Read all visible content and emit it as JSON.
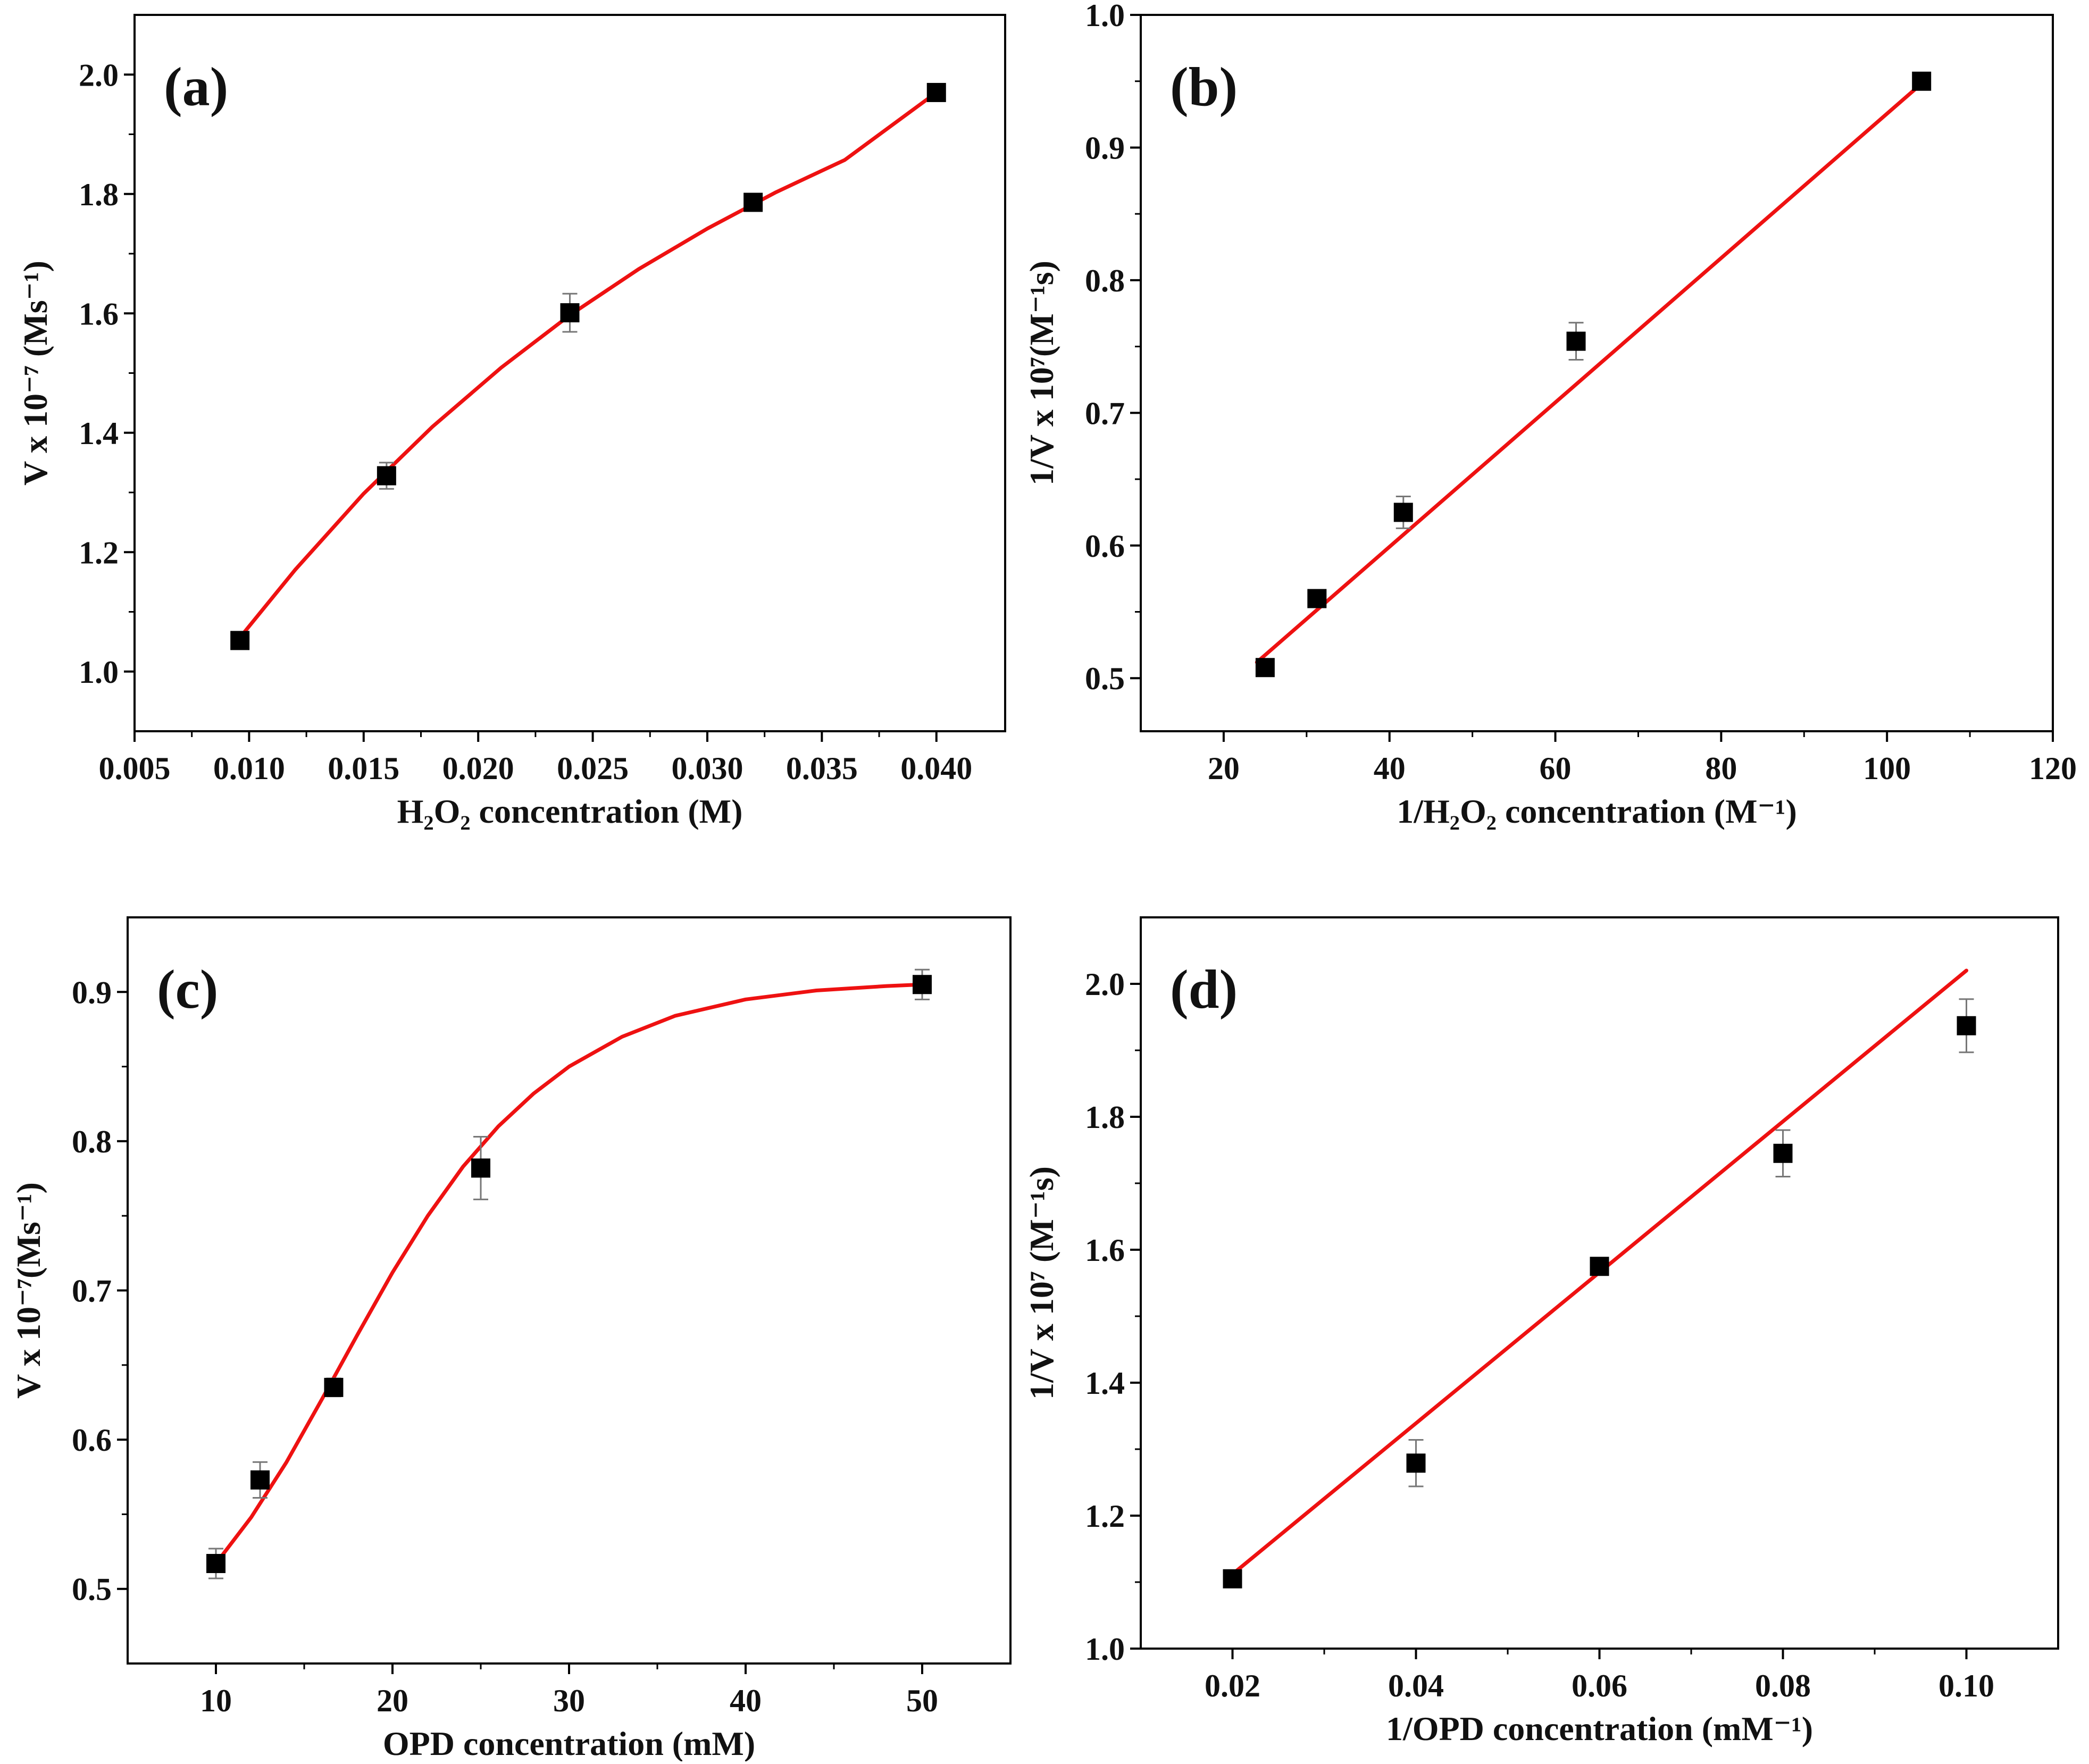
{
  "figure": {
    "colors": {
      "fit_line": "#ee1111",
      "marker": "#000000",
      "error_bar": "#777777",
      "axis": "#000000",
      "background": "#ffffff"
    }
  },
  "chart_data": [
    {
      "id": "a",
      "type": "scatter",
      "panel_label": "(a)",
      "xlabel": "H₂O₂ concentration (M)",
      "ylabel": "V x 10⁻⁷ (Ms⁻¹)",
      "xlim": [
        0.005,
        0.043
      ],
      "ylim": [
        0.9,
        2.1
      ],
      "xticks": [
        0.005,
        0.01,
        0.015,
        0.02,
        0.025,
        0.03,
        0.035,
        0.04
      ],
      "xtick_labels": [
        "0.005",
        "0.010",
        "0.015",
        "0.020",
        "0.025",
        "0.030",
        "0.035",
        "0.040"
      ],
      "yticks": [
        1.0,
        1.2,
        1.4,
        1.6,
        1.8,
        2.0
      ],
      "ytick_labels": [
        "1.0",
        "1.2",
        "1.4",
        "1.6",
        "1.8",
        "2.0"
      ],
      "points": [
        {
          "x": 0.0096,
          "y": 1.052,
          "err": 0.008
        },
        {
          "x": 0.016,
          "y": 1.328,
          "err": 0.022
        },
        {
          "x": 0.024,
          "y": 1.601,
          "err": 0.032
        },
        {
          "x": 0.032,
          "y": 1.786,
          "err": 0.012
        },
        {
          "x": 0.04,
          "y": 1.97,
          "err": 0.008
        }
      ],
      "fit": {
        "x": [
          0.0096,
          0.012,
          0.015,
          0.018,
          0.021,
          0.024,
          0.027,
          0.03,
          0.033,
          0.036,
          0.04
        ],
        "y": [
          1.057,
          1.17,
          1.298,
          1.41,
          1.509,
          1.597,
          1.674,
          1.742,
          1.803,
          1.857,
          1.97
        ]
      }
    },
    {
      "id": "b",
      "type": "scatter",
      "panel_label": "(b)",
      "xlabel": "1/H₂O₂ concentration (M⁻¹)",
      "ylabel": "1/V x 10⁷(M⁻¹s)",
      "xlim": [
        10,
        120
      ],
      "ylim": [
        0.46,
        1.0
      ],
      "xticks": [
        20,
        40,
        60,
        80,
        100,
        120
      ],
      "xtick_labels": [
        "20",
        "40",
        "60",
        "80",
        "100",
        "120"
      ],
      "yticks": [
        0.5,
        0.6,
        0.7,
        0.8,
        0.9,
        1.0
      ],
      "ytick_labels": [
        "0.5",
        "0.6",
        "0.7",
        "0.8",
        "0.9",
        "1.0"
      ],
      "points": [
        {
          "x": 25,
          "y": 0.508,
          "err": 0.006
        },
        {
          "x": 31.25,
          "y": 0.56,
          "err": 0.006
        },
        {
          "x": 41.67,
          "y": 0.625,
          "err": 0.012
        },
        {
          "x": 62.5,
          "y": 0.754,
          "err": 0.014
        },
        {
          "x": 104.17,
          "y": 0.95,
          "err": 0.004
        }
      ],
      "fit": {
        "x": [
          24,
          104.5
        ],
        "y": [
          0.512,
          0.95
        ]
      }
    },
    {
      "id": "c",
      "type": "scatter",
      "panel_label": "(c)",
      "xlabel": "OPD concentration (mM)",
      "ylabel": "V x 10⁻⁷(Ms⁻¹)",
      "xlim": [
        5,
        55
      ],
      "ylim": [
        0.45,
        0.95
      ],
      "xticks": [
        10,
        20,
        30,
        40,
        50
      ],
      "xtick_labels": [
        "10",
        "20",
        "30",
        "40",
        "50"
      ],
      "yticks": [
        0.5,
        0.6,
        0.7,
        0.8,
        0.9
      ],
      "ytick_labels": [
        "0.5",
        "0.6",
        "0.7",
        "0.8",
        "0.9"
      ],
      "points": [
        {
          "x": 10,
          "y": 0.517,
          "err": 0.01
        },
        {
          "x": 12.5,
          "y": 0.573,
          "err": 0.012
        },
        {
          "x": 16.67,
          "y": 0.635,
          "err": 0.006
        },
        {
          "x": 25,
          "y": 0.782,
          "err": 0.021
        },
        {
          "x": 50,
          "y": 0.905,
          "err": 0.01
        }
      ],
      "fit": {
        "x": [
          10,
          12,
          14,
          16,
          18,
          20,
          22,
          24,
          26,
          28,
          30,
          33,
          36,
          40,
          44,
          48,
          50
        ],
        "y": [
          0.517,
          0.548,
          0.585,
          0.627,
          0.67,
          0.712,
          0.75,
          0.783,
          0.81,
          0.832,
          0.85,
          0.87,
          0.884,
          0.895,
          0.901,
          0.904,
          0.905
        ]
      }
    },
    {
      "id": "d",
      "type": "scatter",
      "panel_label": "(d)",
      "xlabel": "1/OPD concentration (mM⁻¹)",
      "ylabel": "1/V x 10⁷ (M⁻¹s)",
      "xlim": [
        0.01,
        0.11
      ],
      "ylim": [
        1.0,
        2.1
      ],
      "xticks": [
        0.02,
        0.04,
        0.06,
        0.08,
        0.1
      ],
      "xtick_labels": [
        "0.02",
        "0.04",
        "0.06",
        "0.08",
        "0.10"
      ],
      "yticks": [
        1.0,
        1.2,
        1.4,
        1.6,
        1.8,
        2.0
      ],
      "ytick_labels": [
        "1.0",
        "1.2",
        "1.4",
        "1.6",
        "1.8",
        "2.0"
      ],
      "points": [
        {
          "x": 0.02,
          "y": 1.105,
          "err": 0.008
        },
        {
          "x": 0.04,
          "y": 1.279,
          "err": 0.035
        },
        {
          "x": 0.06,
          "y": 1.575,
          "err": 0.008
        },
        {
          "x": 0.08,
          "y": 1.745,
          "err": 0.035
        },
        {
          "x": 0.1,
          "y": 1.937,
          "err": 0.04
        }
      ],
      "fit": {
        "x": [
          0.02,
          0.1
        ],
        "y": [
          1.112,
          2.02
        ]
      }
    }
  ]
}
